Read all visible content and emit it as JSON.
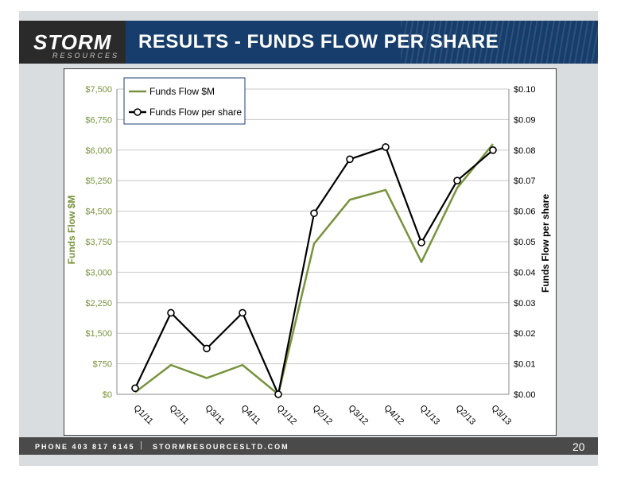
{
  "slide": {
    "logo_main": "STORM",
    "logo_sub": "RESOURCES",
    "title": "RESULTS - FUNDS FLOW PER SHARE",
    "footer_phone": "PHONE 403 817 6145",
    "footer_separator": "|",
    "footer_site": "STORMRESOURCESLTD.COM",
    "page_number": "20"
  },
  "colors": {
    "banner": "#163d6b",
    "funds_flow_line": "#77933c",
    "per_share_line": "#000000",
    "left_axis_text": "#77933c"
  },
  "chart_data": {
    "type": "line",
    "categories": [
      "Q1/11",
      "Q2/11",
      "Q3/11",
      "Q4/11",
      "Q1/12",
      "Q2/12",
      "Q3/12",
      "Q4/12",
      "Q1/13",
      "Q2/13",
      "Q3/13"
    ],
    "series": [
      {
        "name": "Funds Flow $M",
        "axis": "left",
        "color": "#77933c",
        "marker": "none",
        "values": [
          50,
          720,
          400,
          720,
          0,
          3700,
          4780,
          5020,
          3250,
          5070,
          6150
        ]
      },
      {
        "name": "Funds Flow per share",
        "axis": "right",
        "color": "#000000",
        "marker": "open-circle",
        "values": [
          0.002,
          0.0267,
          0.015,
          0.0267,
          0.0,
          0.0593,
          0.077,
          0.081,
          0.0497,
          0.07,
          0.08
        ]
      }
    ],
    "ylabel": "Funds Flow $M",
    "y2label": "Funds Flow per share",
    "ylim": [
      0,
      7500
    ],
    "y2lim": [
      0,
      0.1
    ],
    "yticks": [
      "$0",
      "$750",
      "$1,500",
      "$2,250",
      "$3,000",
      "$3,750",
      "$4,500",
      "$5,250",
      "$6,000",
      "$6,750",
      "$7,500"
    ],
    "y2ticks": [
      "$0.00",
      "$0.01",
      "$0.02",
      "$0.03",
      "$0.04",
      "$0.05",
      "$0.06",
      "$0.07",
      "$0.08",
      "$0.09",
      "$0.10"
    ],
    "grid": true,
    "legend": "top-left"
  }
}
